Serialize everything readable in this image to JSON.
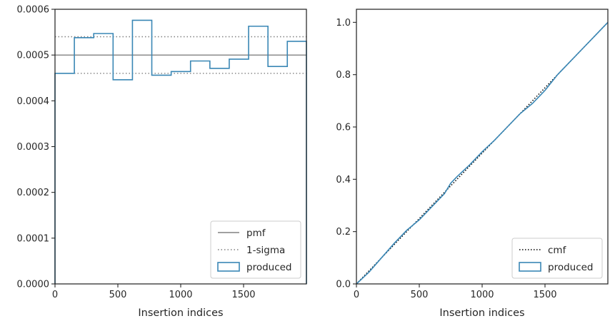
{
  "chart_data": [
    {
      "type": "line",
      "subtype": "step-histogram",
      "xlabel": "Insertion indices",
      "ylabel": "",
      "xlim": [
        0,
        2000
      ],
      "ylim": [
        0,
        0.0006
      ],
      "xticks": [
        0,
        500,
        1000,
        1500
      ],
      "xtick_labels": [
        "0",
        "500",
        "1000",
        "1500"
      ],
      "yticks": [
        0,
        0.0001,
        0.0002,
        0.0003,
        0.0004,
        0.0005,
        0.0006
      ],
      "ytick_labels": [
        "0.0000",
        "0.0001",
        "0.0002",
        "0.0003",
        "0.0004",
        "0.0005",
        "0.0006"
      ],
      "grid": false,
      "legend_position": "lower-right",
      "legend": [
        "pmf",
        "1-sigma",
        "produced"
      ],
      "reference_lines": {
        "pmf": {
          "value": 0.0005,
          "color": "#808080",
          "style": "solid"
        },
        "sigma": {
          "values": [
            0.00054,
            0.00046
          ],
          "color": "#808080",
          "style": "dotted"
        }
      },
      "series": [
        {
          "name": "produced",
          "color": "#3a87b5",
          "bin_edges": [
            0,
            154,
            308,
            462,
            616,
            770,
            924,
            1078,
            1232,
            1386,
            1540,
            1694,
            1848,
            2000
          ],
          "values": [
            0.00046,
            0.000538,
            0.000547,
            0.000446,
            0.000576,
            0.000456,
            0.000464,
            0.000487,
            0.000471,
            0.000491,
            0.000563,
            0.000475,
            0.00053
          ]
        }
      ]
    },
    {
      "type": "line",
      "xlabel": "Insertion indices",
      "ylabel": "",
      "xlim": [
        0,
        2000
      ],
      "ylim": [
        0,
        1.05
      ],
      "xticks": [
        0,
        500,
        1000,
        1500
      ],
      "xtick_labels": [
        "0",
        "500",
        "1000",
        "1500"
      ],
      "yticks": [
        0,
        0.2,
        0.4,
        0.6,
        0.8,
        1.0
      ],
      "ytick_labels": [
        "0.0",
        "0.2",
        "0.4",
        "0.6",
        "0.8",
        "1.0"
      ],
      "grid": false,
      "legend_position": "lower-right",
      "legend": [
        "cmf",
        "produced"
      ],
      "series": [
        {
          "name": "cmf",
          "color": "#000000",
          "style": "dotted",
          "x": [
            0,
            2000
          ],
          "y": [
            0,
            1.0
          ]
        },
        {
          "name": "produced",
          "color": "#3a87b5",
          "x": [
            0,
            100,
            200,
            300,
            400,
            500,
            600,
            700,
            750,
            800,
            900,
            1000,
            1100,
            1200,
            1300,
            1400,
            1500,
            1600,
            1700,
            1800,
            1900,
            2000
          ],
          "y": [
            0,
            0.045,
            0.1,
            0.155,
            0.205,
            0.245,
            0.295,
            0.345,
            0.385,
            0.41,
            0.455,
            0.505,
            0.55,
            0.6,
            0.65,
            0.69,
            0.74,
            0.8,
            0.85,
            0.9,
            0.95,
            1.0
          ]
        }
      ]
    }
  ]
}
